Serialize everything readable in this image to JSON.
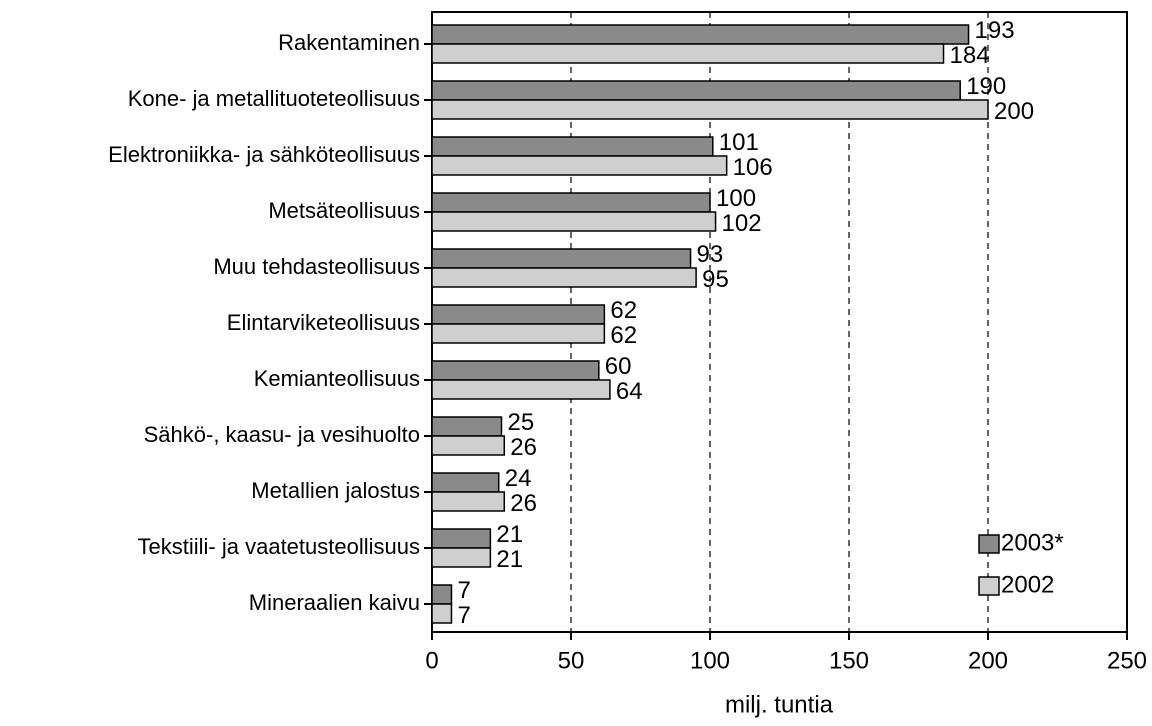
{
  "chart_data": {
    "type": "barh",
    "categories": [
      "Rakentaminen",
      "Kone- ja metallituoteteollisuus",
      "Elektroniikka- ja sähköteollisuus",
      "Metsäteollisuus",
      "Muu tehdasteollisuus",
      "Elintarviketeollisuus",
      "Kemianteollisuus",
      "Sähkö-, kaasu- ja vesihuolto",
      "Metallien jalostus",
      "Tekstiili- ja vaatetusteollisuus",
      "Mineraalien kaivu"
    ],
    "series": [
      {
        "name": "2003*",
        "color": "#8a8a8a",
        "values": [
          193,
          190,
          101,
          100,
          93,
          62,
          60,
          25,
          24,
          21,
          7
        ]
      },
      {
        "name": "2002",
        "color": "#cfcfcf",
        "values": [
          184,
          200,
          106,
          102,
          95,
          62,
          64,
          26,
          26,
          21,
          7
        ]
      }
    ],
    "xlabel": "milj. tuntia",
    "xlim": [
      0,
      250
    ],
    "xticks": [
      0,
      50,
      100,
      150,
      200,
      250
    ],
    "grid": true,
    "legend": "lower right"
  }
}
